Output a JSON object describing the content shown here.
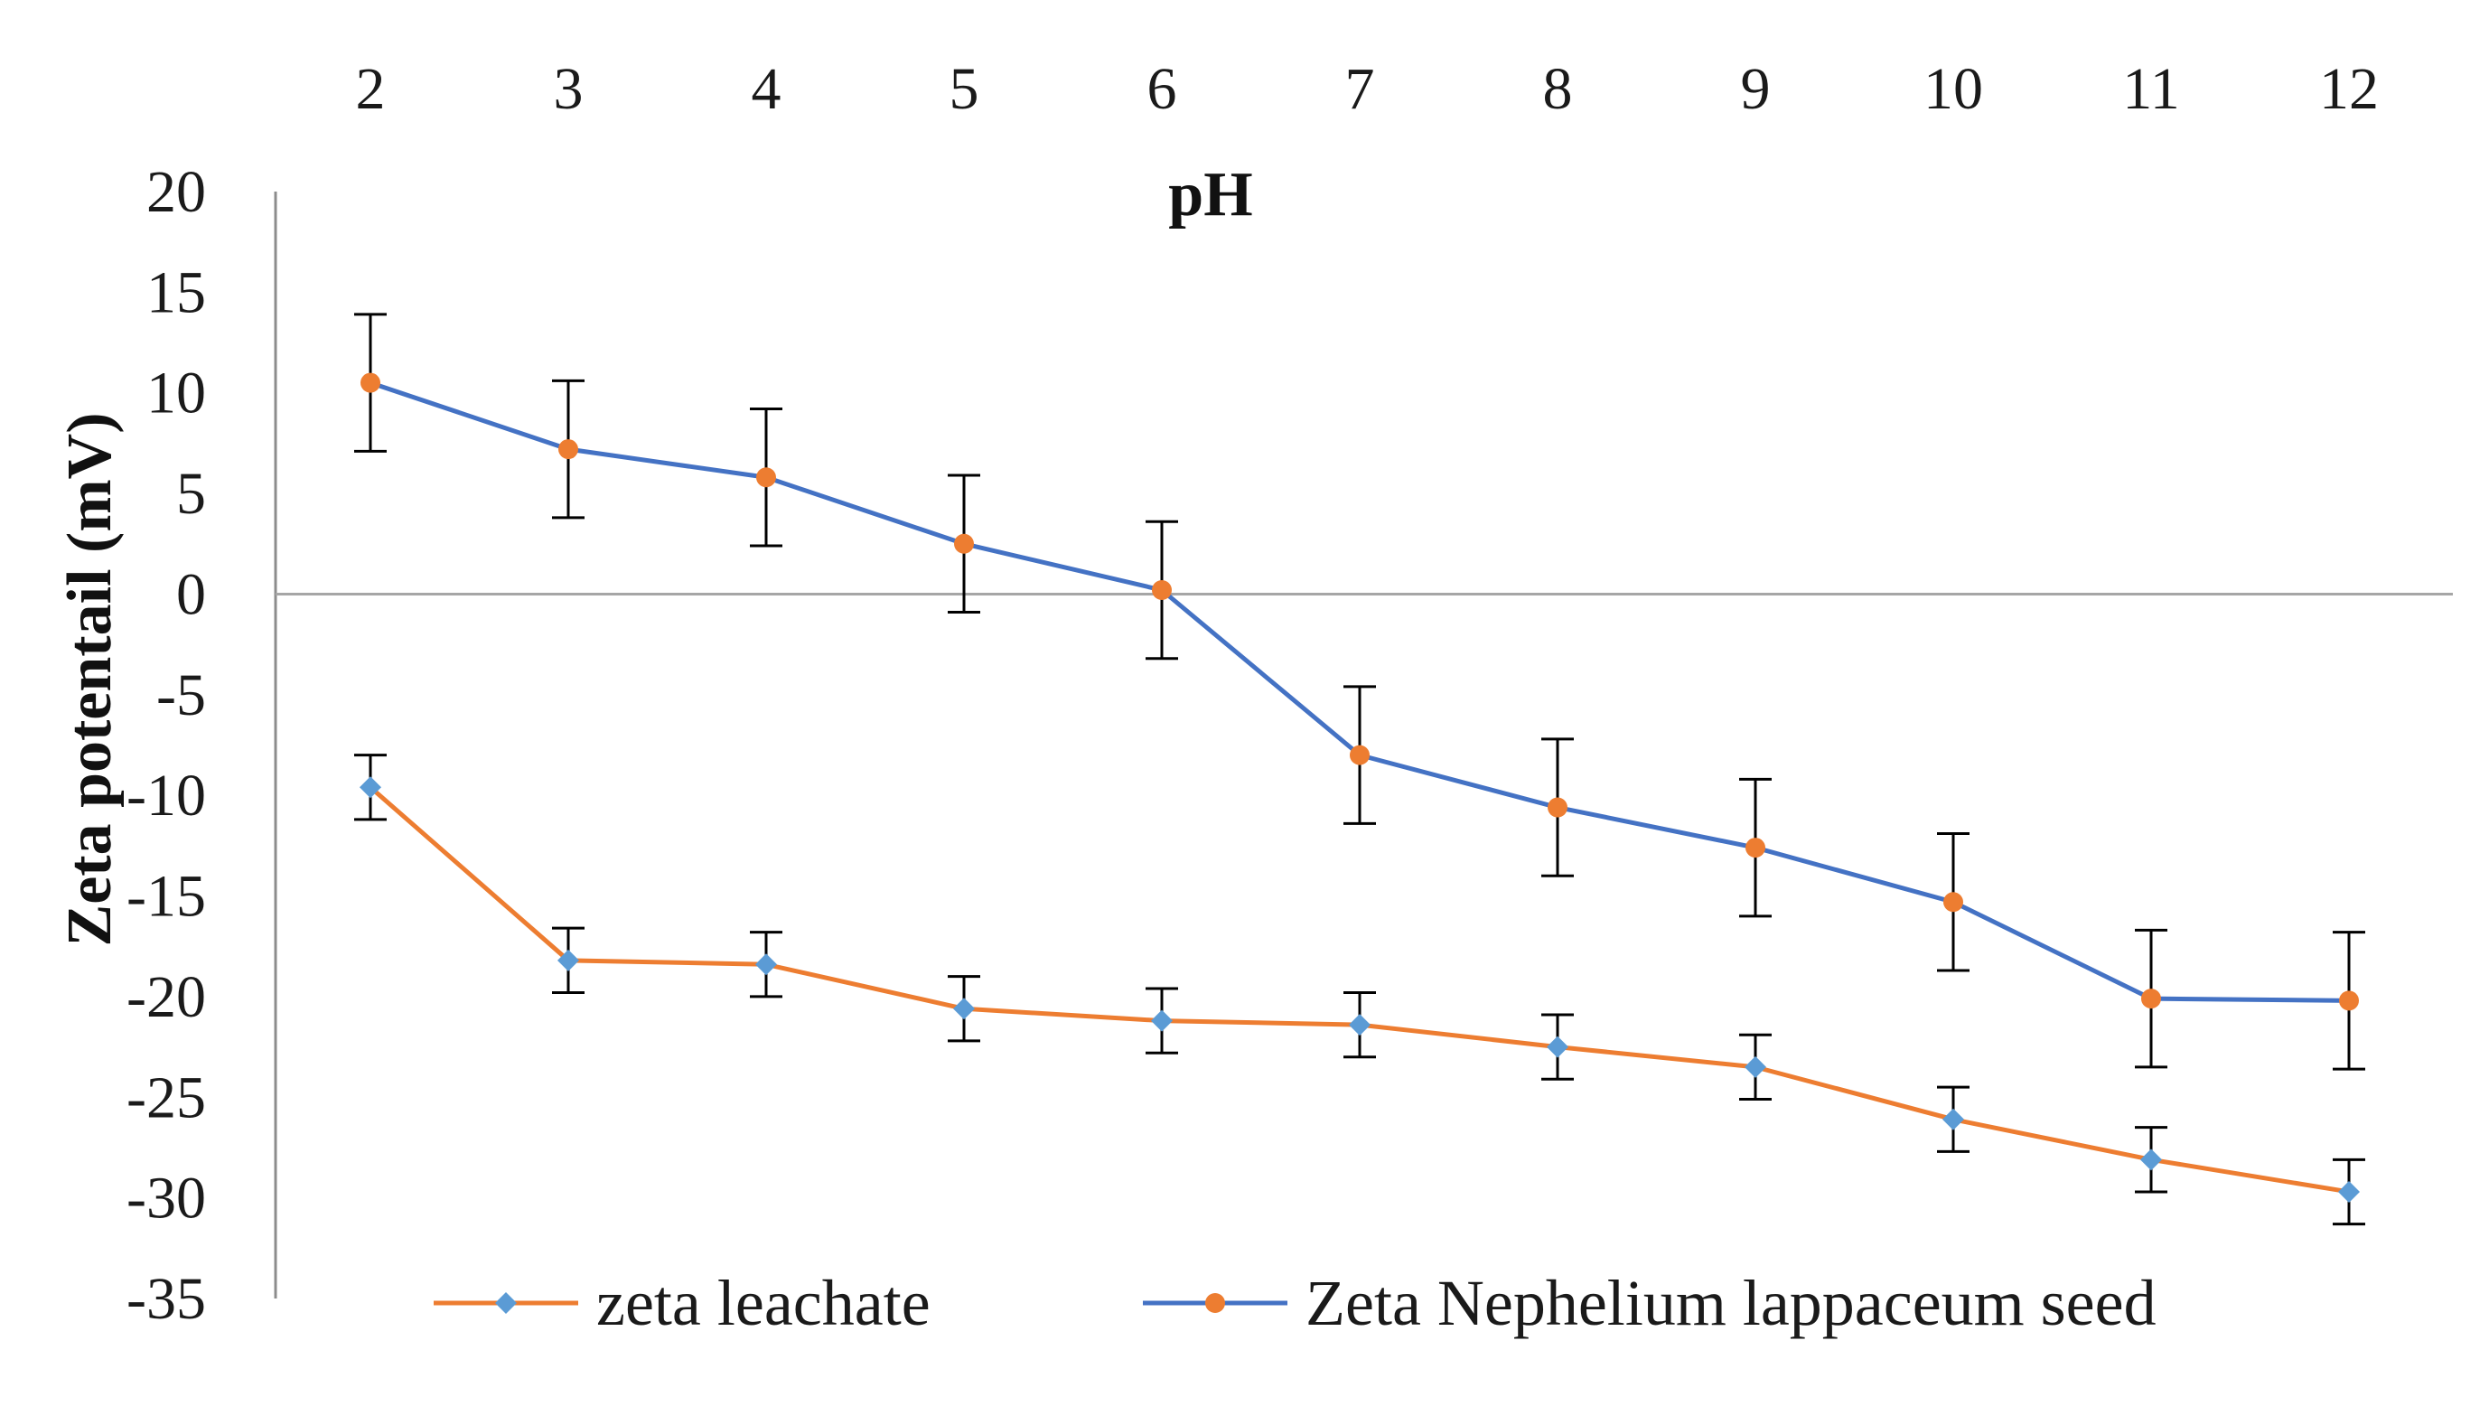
{
  "chart_data": {
    "type": "line",
    "title": "",
    "xlabel": "pH",
    "ylabel": "Zeta potentail (mV)",
    "x": [
      2,
      3,
      4,
      5,
      6,
      7,
      8,
      9,
      10,
      11,
      12
    ],
    "x_tick_labels": [
      "2",
      "3",
      "4",
      "5",
      "6",
      "7",
      "8",
      "9",
      "10",
      "11",
      "12"
    ],
    "ylim": [
      -35,
      20
    ],
    "y_ticks": [
      20,
      15,
      10,
      5,
      0,
      -5,
      -10,
      -15,
      -20,
      -25,
      -30,
      -35
    ],
    "y_tick_labels": [
      "20",
      "15",
      "10",
      "5",
      "0",
      "-5",
      "-10",
      "-15",
      "-20",
      "-25",
      "-30",
      "-35"
    ],
    "grid": false,
    "legend_position": "bottom",
    "series": [
      {
        "name": "zeta leachate",
        "line_color": "#ED7D31",
        "marker_color": "#5B9BD5",
        "marker": "diamond",
        "values": [
          -9.6,
          -18.2,
          -18.4,
          -20.6,
          -21.2,
          -21.4,
          -22.5,
          -23.5,
          -26.1,
          -28.1,
          -29.7
        ],
        "errors": [
          1.6,
          1.6,
          1.6,
          1.6,
          1.6,
          1.6,
          1.6,
          1.6,
          1.6,
          1.6,
          1.6
        ]
      },
      {
        "name": "Zeta Nephelium lappaceum seed",
        "line_color": "#4472C4",
        "marker_color": "#ED7D31",
        "marker": "circle",
        "values": [
          10.5,
          7.2,
          5.8,
          2.5,
          0.2,
          -8.0,
          -10.6,
          -12.6,
          -15.3,
          -20.1,
          -20.2
        ],
        "errors": [
          3.4,
          3.4,
          3.4,
          3.4,
          3.4,
          3.4,
          3.4,
          3.4,
          3.4,
          3.4,
          3.4
        ]
      }
    ]
  }
}
